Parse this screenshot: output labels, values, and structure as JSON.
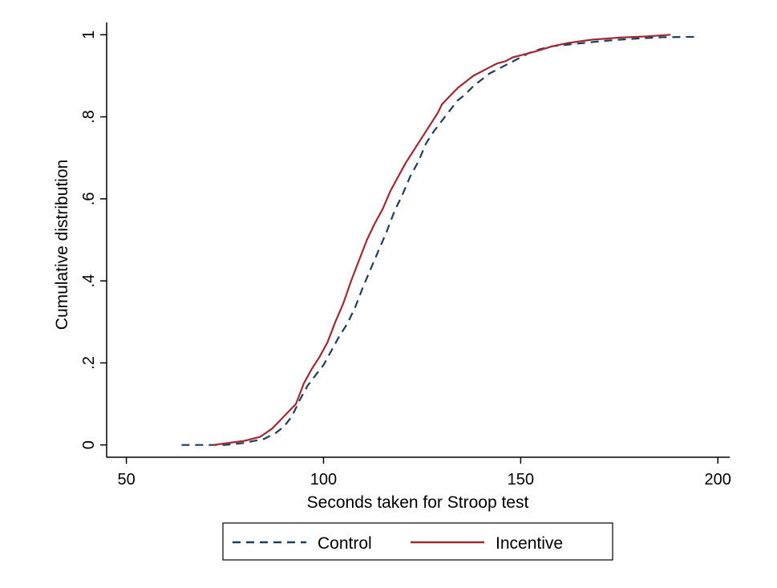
{
  "chart_data": {
    "type": "line",
    "title": "",
    "xlabel": "Seconds taken for Stroop test",
    "ylabel": "Cumulative distribution",
    "xlim": [
      45,
      203
    ],
    "ylim": [
      -0.03,
      1.03
    ],
    "xticks": [
      50,
      100,
      150,
      200
    ],
    "xtick_labels": [
      "50",
      "100",
      "150",
      "200"
    ],
    "yticks": [
      0,
      0.2,
      0.4,
      0.6,
      0.8,
      1
    ],
    "ytick_labels": [
      "0",
      ".2",
      ".4",
      ".6",
      ".8",
      "1"
    ],
    "grid": false,
    "legend_position": "bottom",
    "series": [
      {
        "name": "Control",
        "color": "#1f3d5c",
        "style": "dashed",
        "x": [
          64,
          70,
          75,
          80,
          85,
          88,
          90,
          92,
          94,
          96,
          98,
          100,
          102,
          104,
          106,
          108,
          110,
          112,
          114,
          116,
          118,
          120,
          122,
          124,
          126,
          128,
          130,
          132,
          134,
          136,
          138,
          140,
          142,
          144,
          146,
          148,
          150,
          152,
          155,
          158,
          162,
          166,
          170,
          175,
          180,
          186,
          195
        ],
        "y": [
          0,
          0,
          0,
          0.005,
          0.015,
          0.03,
          0.045,
          0.07,
          0.11,
          0.145,
          0.17,
          0.195,
          0.23,
          0.265,
          0.295,
          0.335,
          0.385,
          0.43,
          0.475,
          0.52,
          0.57,
          0.61,
          0.655,
          0.69,
          0.735,
          0.765,
          0.79,
          0.815,
          0.84,
          0.855,
          0.875,
          0.89,
          0.905,
          0.915,
          0.925,
          0.935,
          0.945,
          0.955,
          0.965,
          0.972,
          0.976,
          0.98,
          0.984,
          0.988,
          0.991,
          0.994,
          0.995
        ]
      },
      {
        "name": "Incentive",
        "color": "#9e2a35",
        "style": "solid",
        "x": [
          72,
          76,
          80,
          84,
          87,
          89,
          91,
          93,
          95,
          97,
          99,
          101,
          103,
          105,
          107,
          109,
          111,
          113,
          115,
          117,
          119,
          121,
          123,
          125,
          127,
          129,
          130,
          132,
          134,
          136,
          138,
          140,
          142,
          144,
          146,
          148,
          150,
          154,
          158,
          162,
          168,
          175,
          182,
          188
        ],
        "y": [
          0,
          0.005,
          0.01,
          0.02,
          0.04,
          0.06,
          0.08,
          0.1,
          0.15,
          0.185,
          0.215,
          0.25,
          0.3,
          0.345,
          0.4,
          0.45,
          0.5,
          0.54,
          0.575,
          0.62,
          0.655,
          0.69,
          0.72,
          0.75,
          0.78,
          0.81,
          0.83,
          0.85,
          0.87,
          0.885,
          0.9,
          0.91,
          0.92,
          0.93,
          0.935,
          0.945,
          0.95,
          0.96,
          0.972,
          0.98,
          0.988,
          0.993,
          0.996,
          1
        ]
      }
    ]
  }
}
